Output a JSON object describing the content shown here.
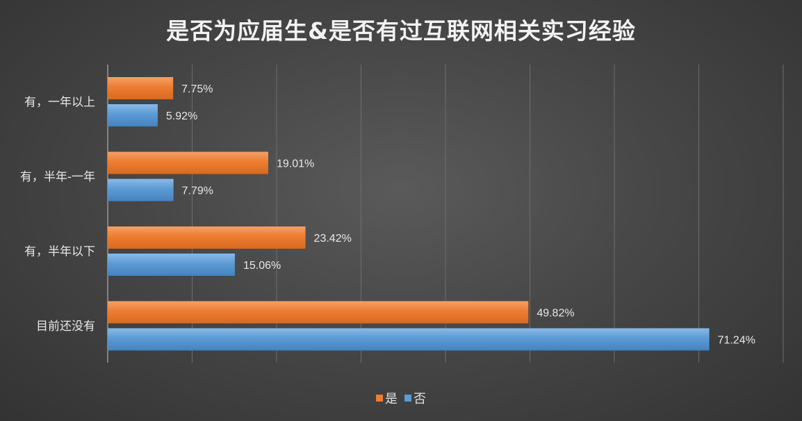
{
  "chart_data": {
    "type": "bar",
    "orientation": "horizontal",
    "title": "是否为应届生&是否有过互联网相关实习经验",
    "categories": [
      "有，一年以上",
      "有，半年-一年",
      "有，半年以下",
      "目前还没有"
    ],
    "series": [
      {
        "name": "是",
        "color": "#ed7d31",
        "values": [
          7.75,
          19.01,
          23.42,
          49.82
        ],
        "labels": [
          "7.75%",
          "19.01%",
          "23.42%",
          "49.82%"
        ]
      },
      {
        "name": "否",
        "color": "#5b9bd5",
        "values": [
          5.92,
          7.79,
          15.06,
          71.24
        ],
        "labels": [
          "5.92%",
          "7.79%",
          "15.06%",
          "71.24%"
        ]
      }
    ],
    "xlim": [
      0,
      80
    ],
    "gridlines": true,
    "tick_labels_visible": false,
    "legend_position": "bottom"
  }
}
